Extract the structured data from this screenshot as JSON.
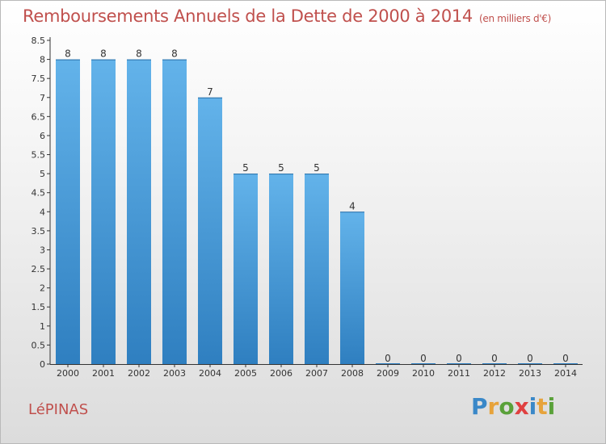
{
  "title": "Remboursements Annuels de la Dette de 2000 à 2014",
  "unit": "(en milliers d'€)",
  "commune": "LéPINAS",
  "logo": {
    "letters": [
      "P",
      "r",
      "o",
      "x",
      "i",
      "t",
      "i"
    ],
    "colors": [
      "#3a88c8",
      "#e7a33b",
      "#5aa13a",
      "#e04040",
      "#3a88c8",
      "#e7a33b",
      "#5aa13a"
    ]
  },
  "colors": {
    "bar_top": "#63b3ea",
    "bar_bottom": "#2f7fc0",
    "title": "#c0504d",
    "axis": "#333333"
  },
  "chart_data": {
    "type": "bar",
    "categories": [
      "2000",
      "2001",
      "2002",
      "2003",
      "2004",
      "2005",
      "2006",
      "2007",
      "2008",
      "2009",
      "2010",
      "2011",
      "2012",
      "2013",
      "2014"
    ],
    "values": [
      8,
      8,
      8,
      8,
      7,
      5,
      5,
      5,
      4,
      0,
      0,
      0,
      0,
      0,
      0
    ],
    "yticks": [
      "0",
      "0.5",
      "1",
      "1.5",
      "2",
      "2.5",
      "3",
      "3.5",
      "4",
      "4.5",
      "5",
      "5.5",
      "6",
      "6.5",
      "7",
      "7.5",
      "8",
      "8.5"
    ],
    "ylim": [
      0,
      8.5
    ],
    "grid": false
  }
}
